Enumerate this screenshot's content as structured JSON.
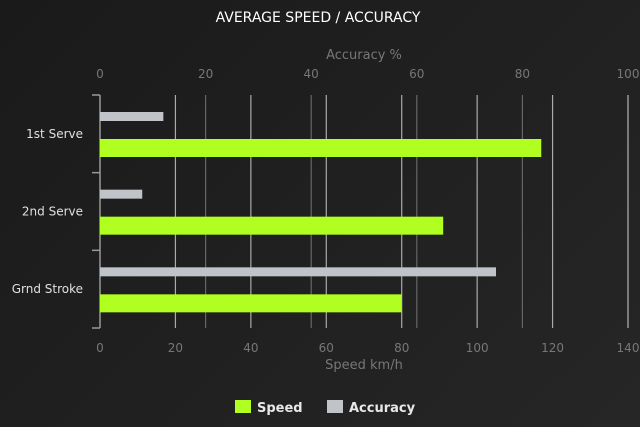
{
  "chart_data": {
    "type": "bar",
    "orientation": "horizontal",
    "title": "AVERAGE SPEED / ACCURACY",
    "categories": [
      "1st Serve",
      "2nd Serve",
      "Grnd Stroke"
    ],
    "series": [
      {
        "name": "Accuracy",
        "axis": "top",
        "color": "#c0c4c8",
        "values": [
          12,
          8,
          75
        ]
      },
      {
        "name": "Speed",
        "axis": "bottom",
        "color": "#b0ff20",
        "values": [
          117,
          91,
          80
        ]
      }
    ],
    "x_top": {
      "label": "Accuracy %",
      "range": [
        0,
        100
      ],
      "ticks": [
        0,
        20,
        40,
        60,
        80,
        100
      ]
    },
    "x_bottom": {
      "label": "Speed km/h",
      "range": [
        0,
        140
      ],
      "ticks": [
        0,
        20,
        40,
        60,
        80,
        100,
        120,
        140
      ]
    },
    "grid": true,
    "legend": {
      "placement": "bottom",
      "entries": [
        {
          "name": "Speed",
          "color": "#b0ff20"
        },
        {
          "name": "Accuracy",
          "color": "#c0c4c8"
        }
      ]
    }
  }
}
